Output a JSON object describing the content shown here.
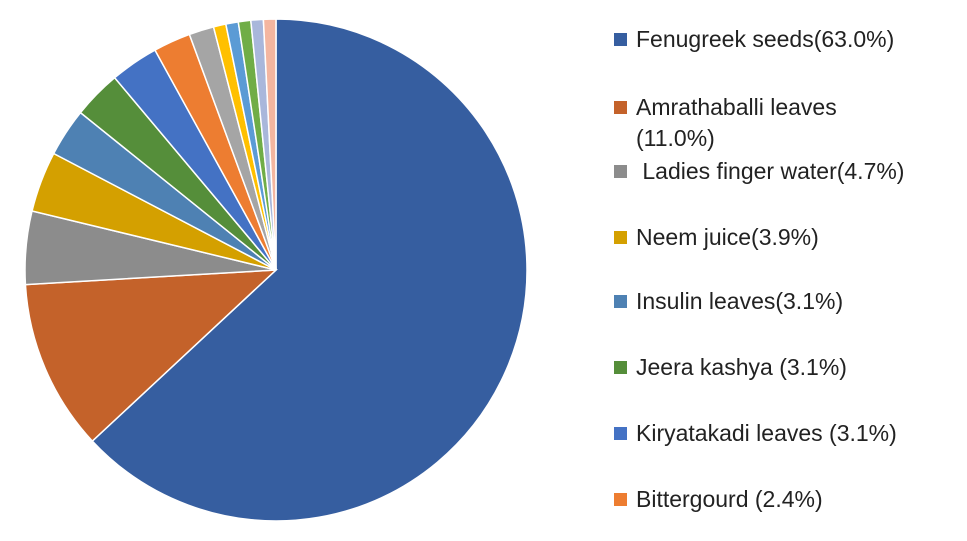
{
  "chart_data": {
    "type": "pie",
    "start": "top",
    "direction": "clockwise",
    "legend_position": "right",
    "slices": [
      {
        "label": "Fenugreek seeds(63.0%)",
        "value": 63.0,
        "color": "#365EA0",
        "legend": true
      },
      {
        "label": "Amrathaballi leaves (11.0%)",
        "value": 11.0,
        "color": "#C4622A",
        "legend": true
      },
      {
        "label": " Ladies finger water(4.7%)",
        "value": 4.7,
        "color": "#8C8C8C",
        "legend": true
      },
      {
        "label": "Neem juice(3.9%)",
        "value": 3.9,
        "color": "#D4A000",
        "legend": true
      },
      {
        "label": "Insulin leaves(3.1%)",
        "value": 3.1,
        "color": "#4E81B3",
        "legend": true
      },
      {
        "label": "Jeera kashya (3.1%)",
        "value": 3.1,
        "color": "#558E3A",
        "legend": true
      },
      {
        "label": "Kiryatakadi leaves (3.1%)",
        "value": 3.1,
        "color": "#4472C4",
        "legend": true
      },
      {
        "label": "Bittergourd (2.4%)",
        "value": 2.4,
        "color": "#ED7D31",
        "legend": true
      },
      {
        "label": "",
        "value": 1.6,
        "color": "#A5A5A5",
        "legend": false
      },
      {
        "label": "",
        "value": 0.8,
        "color": "#FFC000",
        "legend": false
      },
      {
        "label": "",
        "value": 0.8,
        "color": "#5B9BD5",
        "legend": false
      },
      {
        "label": "",
        "value": 0.8,
        "color": "#70AD47",
        "legend": false
      },
      {
        "label": "",
        "value": 0.8,
        "color": "#A9B7DB",
        "legend": false
      },
      {
        "label": "",
        "value": 0.8,
        "color": "#F4B6A0",
        "legend": false
      }
    ]
  }
}
